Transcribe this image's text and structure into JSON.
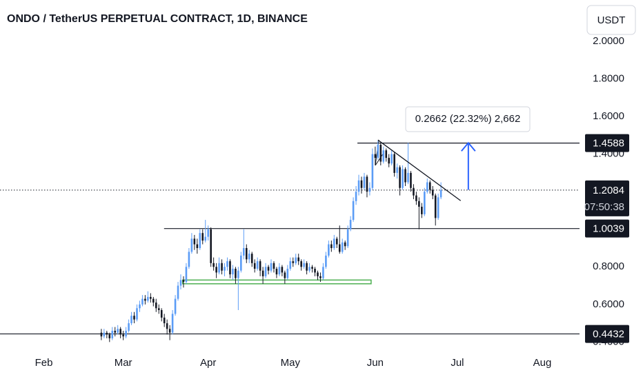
{
  "chart_data": {
    "type": "candlestick",
    "title": "ONDO / TetherUS PERPETUAL CONTRACT, 1D, BINANCE",
    "currency": "USDT",
    "up_color": "#5b9cf6",
    "down_color": "#131722",
    "xlim": [
      -37,
      174.6
    ],
    "ylim": [
      0.35,
      2.22
    ],
    "xticks": [
      {
        "value": -21,
        "label": "Feb"
      },
      {
        "value": 8,
        "label": "Mar"
      },
      {
        "value": 39,
        "label": "Apr"
      },
      {
        "value": 69,
        "label": "May"
      },
      {
        "value": 100,
        "label": "Jun"
      },
      {
        "value": 130,
        "label": "Jul"
      },
      {
        "value": 161,
        "label": "Aug"
      }
    ],
    "yticks": [
      {
        "value": 2.0,
        "label": "2.0000"
      },
      {
        "value": 1.8,
        "label": "1.8000"
      },
      {
        "value": 1.6,
        "label": "1.6000"
      },
      {
        "value": 1.4,
        "label": "1.4000"
      },
      {
        "value": 0.8,
        "label": "0.8000"
      },
      {
        "value": 0.6,
        "label": "0.6000"
      },
      {
        "value": 0.4,
        "label": "0.4000"
      }
    ],
    "ohlc": [
      [
        0.45,
        0.47,
        0.41,
        0.43
      ],
      [
        0.43,
        0.47,
        0.42,
        0.45
      ],
      [
        0.45,
        0.46,
        0.42,
        0.44
      ],
      [
        0.44,
        0.45,
        0.4,
        0.42
      ],
      [
        0.42,
        0.48,
        0.41,
        0.46
      ],
      [
        0.46,
        0.48,
        0.43,
        0.45
      ],
      [
        0.45,
        0.49,
        0.44,
        0.47
      ],
      [
        0.47,
        0.48,
        0.42,
        0.44
      ],
      [
        0.44,
        0.46,
        0.41,
        0.43
      ],
      [
        0.43,
        0.48,
        0.42,
        0.46
      ],
      [
        0.46,
        0.52,
        0.45,
        0.5
      ],
      [
        0.5,
        0.56,
        0.49,
        0.54
      ],
      [
        0.54,
        0.56,
        0.5,
        0.52
      ],
      [
        0.52,
        0.6,
        0.51,
        0.58
      ],
      [
        0.58,
        0.62,
        0.56,
        0.6
      ],
      [
        0.6,
        0.65,
        0.59,
        0.63
      ],
      [
        0.63,
        0.65,
        0.6,
        0.62
      ],
      [
        0.62,
        0.67,
        0.61,
        0.64
      ],
      [
        0.64,
        0.66,
        0.61,
        0.63
      ],
      [
        0.63,
        0.64,
        0.59,
        0.61
      ],
      [
        0.61,
        0.63,
        0.56,
        0.58
      ],
      [
        0.58,
        0.6,
        0.55,
        0.57
      ],
      [
        0.57,
        0.58,
        0.51,
        0.53
      ],
      [
        0.53,
        0.55,
        0.48,
        0.5
      ],
      [
        0.5,
        0.52,
        0.44,
        0.47
      ],
      [
        0.47,
        0.49,
        0.41,
        0.45
      ],
      [
        0.45,
        0.57,
        0.44,
        0.55
      ],
      [
        0.55,
        0.65,
        0.54,
        0.63
      ],
      [
        0.63,
        0.72,
        0.62,
        0.7
      ],
      [
        0.7,
        0.76,
        0.68,
        0.73
      ],
      [
        0.73,
        0.75,
        0.69,
        0.72
      ],
      [
        0.72,
        0.82,
        0.71,
        0.8
      ],
      [
        0.8,
        0.9,
        0.79,
        0.88
      ],
      [
        0.88,
        0.98,
        0.87,
        0.95
      ],
      [
        0.95,
        0.97,
        0.89,
        0.92
      ],
      [
        0.92,
        0.95,
        0.87,
        0.9
      ],
      [
        0.9,
        1.0,
        0.89,
        0.98
      ],
      [
        0.98,
        1.0,
        0.92,
        0.94
      ],
      [
        0.94,
        1.05,
        0.93,
        0.96
      ],
      [
        0.96,
        1.02,
        0.94,
        1.0
      ],
      [
        1.0,
        1.01,
        0.8,
        0.82
      ],
      [
        0.82,
        0.85,
        0.78,
        0.8
      ],
      [
        0.8,
        0.82,
        0.74,
        0.77
      ],
      [
        0.77,
        0.85,
        0.76,
        0.82
      ],
      [
        0.82,
        0.84,
        0.76,
        0.78
      ],
      [
        0.78,
        0.82,
        0.75,
        0.8
      ],
      [
        0.8,
        0.85,
        0.78,
        0.83
      ],
      [
        0.83,
        0.84,
        0.74,
        0.76
      ],
      [
        0.76,
        0.81,
        0.73,
        0.79
      ],
      [
        0.79,
        0.8,
        0.71,
        0.74
      ],
      [
        0.74,
        0.8,
        0.57,
        0.78
      ],
      [
        0.78,
        0.88,
        0.77,
        0.86
      ],
      [
        0.86,
        1.0,
        0.84,
        0.9
      ],
      [
        0.9,
        0.92,
        0.82,
        0.84
      ],
      [
        0.84,
        0.89,
        0.82,
        0.87
      ],
      [
        0.87,
        0.88,
        0.8,
        0.82
      ],
      [
        0.82,
        0.84,
        0.77,
        0.79
      ],
      [
        0.79,
        0.85,
        0.78,
        0.83
      ],
      [
        0.83,
        0.84,
        0.75,
        0.78
      ],
      [
        0.78,
        0.8,
        0.71,
        0.75
      ],
      [
        0.75,
        0.82,
        0.74,
        0.8
      ],
      [
        0.8,
        0.81,
        0.76,
        0.78
      ],
      [
        0.78,
        0.84,
        0.77,
        0.82
      ],
      [
        0.82,
        0.83,
        0.77,
        0.79
      ],
      [
        0.79,
        0.8,
        0.74,
        0.76
      ],
      [
        0.76,
        0.82,
        0.75,
        0.8
      ],
      [
        0.8,
        0.81,
        0.75,
        0.77
      ],
      [
        0.77,
        0.78,
        0.71,
        0.74
      ],
      [
        0.74,
        0.81,
        0.73,
        0.79
      ],
      [
        0.79,
        0.85,
        0.78,
        0.83
      ],
      [
        0.83,
        0.85,
        0.8,
        0.82
      ],
      [
        0.82,
        0.87,
        0.81,
        0.85
      ],
      [
        0.85,
        0.87,
        0.81,
        0.83
      ],
      [
        0.83,
        0.84,
        0.78,
        0.8
      ],
      [
        0.8,
        0.84,
        0.79,
        0.82
      ],
      [
        0.82,
        0.83,
        0.76,
        0.78
      ],
      [
        0.78,
        0.82,
        0.77,
        0.8
      ],
      [
        0.8,
        0.81,
        0.77,
        0.79
      ],
      [
        0.79,
        0.8,
        0.75,
        0.77
      ],
      [
        0.77,
        0.78,
        0.73,
        0.75
      ],
      [
        0.75,
        0.77,
        0.72,
        0.74
      ],
      [
        0.74,
        0.82,
        0.73,
        0.8
      ],
      [
        0.8,
        0.88,
        0.79,
        0.86
      ],
      [
        0.86,
        0.94,
        0.85,
        0.92
      ],
      [
        0.92,
        0.94,
        0.88,
        0.9
      ],
      [
        0.9,
        0.97,
        0.89,
        0.95
      ],
      [
        0.95,
        0.96,
        0.9,
        0.92
      ],
      [
        0.92,
        1.02,
        0.87,
        0.88
      ],
      [
        0.88,
        0.95,
        0.87,
        0.93
      ],
      [
        0.93,
        0.94,
        0.89,
        0.91
      ],
      [
        0.91,
        1.02,
        0.9,
        1.0
      ],
      [
        1.0,
        1.07,
        0.99,
        1.05
      ],
      [
        1.05,
        1.17,
        1.04,
        1.15
      ],
      [
        1.15,
        1.23,
        1.13,
        1.2
      ],
      [
        1.2,
        1.29,
        1.18,
        1.26
      ],
      [
        1.26,
        1.28,
        1.19,
        1.22
      ],
      [
        1.22,
        1.3,
        1.21,
        1.28
      ],
      [
        1.28,
        1.29,
        1.17,
        1.2
      ],
      [
        1.2,
        1.25,
        1.18,
        1.22
      ],
      [
        1.22,
        1.43,
        1.21,
        1.4
      ],
      [
        1.4,
        1.44,
        1.34,
        1.38
      ],
      [
        1.38,
        1.47,
        1.37,
        1.45
      ],
      [
        1.45,
        1.46,
        1.34,
        1.36
      ],
      [
        1.36,
        1.44,
        1.35,
        1.42
      ],
      [
        1.42,
        1.43,
        1.36,
        1.38
      ],
      [
        1.38,
        1.4,
        1.33,
        1.35
      ],
      [
        1.35,
        1.42,
        1.34,
        1.4
      ],
      [
        1.4,
        1.41,
        1.28,
        1.3
      ],
      [
        1.3,
        1.35,
        1.27,
        1.33
      ],
      [
        1.33,
        1.34,
        1.18,
        1.22
      ],
      [
        1.22,
        1.34,
        1.21,
        1.32
      ],
      [
        1.32,
        1.33,
        1.23,
        1.25
      ],
      [
        1.25,
        1.46,
        1.24,
        1.3
      ],
      [
        1.3,
        1.31,
        1.2,
        1.22
      ],
      [
        1.22,
        1.24,
        1.16,
        1.18
      ],
      [
        1.18,
        1.2,
        1.13,
        1.15
      ],
      [
        1.15,
        1.17,
        1.0,
        1.12
      ],
      [
        1.12,
        1.14,
        1.06,
        1.08
      ],
      [
        1.08,
        1.22,
        1.07,
        1.2
      ],
      [
        1.2,
        1.27,
        1.19,
        1.25
      ],
      [
        1.25,
        1.26,
        1.19,
        1.21
      ],
      [
        1.21,
        1.23,
        1.16,
        1.18
      ],
      [
        1.18,
        1.19,
        1.02,
        1.06
      ],
      [
        1.06,
        1.19,
        1.05,
        1.17
      ],
      [
        1.17,
        1.25,
        1.16,
        1.2084
      ]
    ],
    "levels": [
      {
        "price": 1.4588,
        "start": 93.5
      },
      {
        "price": 1.0039,
        "start": 22.9
      },
      {
        "price": 0.4432,
        "start": -37
      }
    ],
    "last_price": 1.2084,
    "countdown": "07:50:38",
    "zone": {
      "low": 0.71,
      "high": 0.73,
      "start": 29.7,
      "end": 98.5,
      "color": "#4caf50"
    },
    "trendline": {
      "x": [
        101,
        131.2
      ],
      "y": [
        1.475,
        1.152
      ]
    },
    "arrow": {
      "x": 134,
      "from": 1.21,
      "to": 1.46,
      "color": "#2962ff"
    },
    "measure_label": "0.2662 (22.32%) 2,662"
  }
}
